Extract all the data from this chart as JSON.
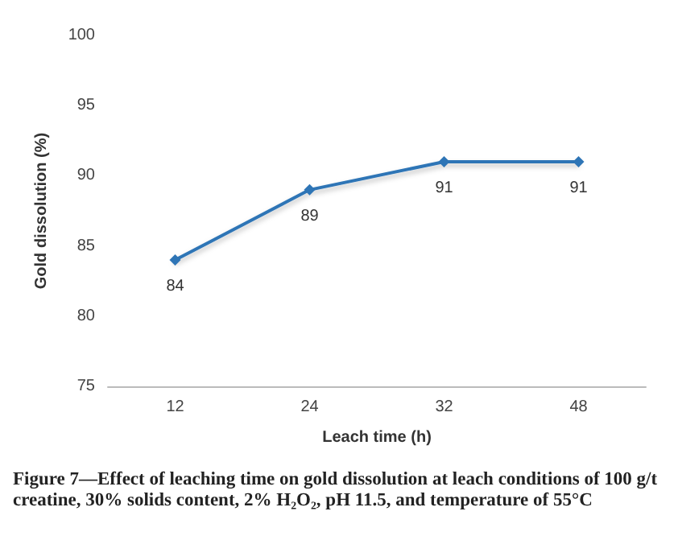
{
  "chart_data": {
    "type": "line",
    "title": "Figure 7—Effect of leaching time on gold dissolution at leach conditions of 100 g/t creatine, 30% solids content, 2% H₂O₂, pH 11.5, and temperature of 55°C",
    "xlabel": "Leach time (h)",
    "ylabel": "Gold dissolution (%)",
    "categories": [
      "12",
      "24",
      "32",
      "48"
    ],
    "series": [
      {
        "color": "#2e75b6",
        "values": [
          84,
          89,
          91,
          91
        ]
      }
    ],
    "ylim": [
      75,
      100
    ],
    "yticks": [
      75,
      80,
      85,
      90,
      95,
      100
    ],
    "grid": false,
    "marker": "diamond",
    "line_style": "solid",
    "data_labels": true
  }
}
